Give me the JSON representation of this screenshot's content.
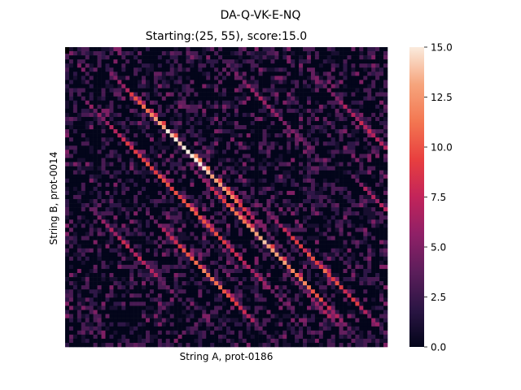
{
  "chart_data": {
    "type": "heatmap",
    "suptitle": "DA-Q-VK-E-NQ",
    "title": "Starting:(25, 55), score:15.0",
    "xlabel": "String A, prot-0186",
    "ylabel": "String B, prot-0014",
    "n_cols": 80,
    "n_rows": 73,
    "vmin": 0,
    "vmax": 15,
    "colorbar_ticks": [
      "0.0",
      "2.5",
      "5.0",
      "7.5",
      "10.0",
      "12.5",
      "15.0"
    ],
    "colorbar_tick_values": [
      0,
      2.5,
      5,
      7.5,
      10,
      12.5,
      15
    ],
    "colormap": "rocket",
    "colormap_stops": [
      "#03051a",
      "#2b1544",
      "#5c1e5b",
      "#8f2067",
      "#c2245a",
      "#e83f3f",
      "#f37651",
      "#f6a47c",
      "#faebdd"
    ],
    "start_cell": [
      0,
      0
    ],
    "best_alignment": {
      "start": [
        25,
        55
      ],
      "score": 15.0
    },
    "diagonal_bands": [
      {
        "x0": 10,
        "y0": 5,
        "len": 45,
        "peak": 15
      },
      {
        "x0": 2,
        "y0": 10,
        "len": 60,
        "peak": 10
      },
      {
        "x0": 30,
        "y0": 28,
        "len": 45,
        "peak": 13
      },
      {
        "x0": 20,
        "y0": 40,
        "len": 33,
        "peak": 11
      },
      {
        "x0": 48,
        "y0": 38,
        "len": 35,
        "peak": 10
      },
      {
        "x0": 60,
        "y0": 5,
        "len": 30,
        "peak": 7
      },
      {
        "x0": 38,
        "y0": 2,
        "len": 28,
        "peak": 6
      },
      {
        "x0": 5,
        "y0": 38,
        "len": 25,
        "peak": 7
      },
      {
        "x0": 70,
        "y0": 30,
        "len": 20,
        "peak": 7
      },
      {
        "x0": 55,
        "y0": 55,
        "len": 18,
        "peak": 6
      }
    ]
  }
}
